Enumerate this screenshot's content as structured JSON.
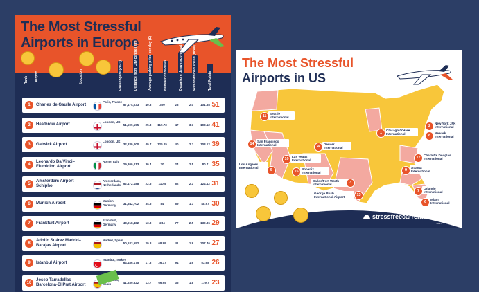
{
  "europe": {
    "title_line1": "The Most Stressful",
    "title_line2": "Airports in Europe",
    "columns": [
      "Rank",
      "Airport",
      "Location",
      "Passengers (2023)",
      "Distance from City centre (km)",
      "Average parking price per day (£)",
      "Number of reviews",
      "Departure delays score (out of 5)",
      "Wifi download speed (Mb/s)",
      "Total Points"
    ],
    "rows": [
      {
        "rank": "1",
        "airport": "Charles de Gaulle Airport",
        "location": "Paris, France",
        "flag": "france",
        "passengers": "57,474,033",
        "distance": "40.3",
        "parking": "300",
        "reviews": "28",
        "delay": "2.0",
        "wifi": "101.68",
        "total": "51"
      },
      {
        "rank": "2",
        "airport": "Heathrow Airport",
        "location": "London, UK",
        "flag": "uk",
        "passengers": "51,599,195",
        "distance": "25.3",
        "parking": "119.73",
        "reviews": "47",
        "delay": "3.7",
        "wifi": "103.12",
        "total": "41"
      },
      {
        "rank": "3",
        "airport": "Gatwick Airport",
        "location": "London, UK",
        "flag": "uk",
        "passengers": "32,839,000",
        "distance": "49.7",
        "parking": "125.25",
        "reviews": "40",
        "delay": "2.3",
        "wifi": "103.12",
        "total": "39"
      },
      {
        "rank": "4",
        "airport": "Leonardo Da Vinci–Fiumicino Airport",
        "location": "Rome, Italy",
        "flag": "italy",
        "passengers": "29,300,013",
        "distance": "30.4",
        "parking": "20",
        "reviews": "24",
        "delay": "2.5",
        "wifi": "80.7",
        "total": "35"
      },
      {
        "rank": "5",
        "airport": "Amsterdam Airport Schiphol",
        "location": "Amsterdam, Netherlands",
        "flag": "netherlands",
        "passengers": "52,472,188",
        "distance": "22.5",
        "parking": "110.5",
        "reviews": "62",
        "delay": "2.1",
        "wifi": "124.12",
        "total": "31"
      },
      {
        "rank": "6",
        "airport": "Munich Airport",
        "location": "Munich, Germany",
        "flag": "germany",
        "passengers": "31,642,702",
        "distance": "34.5",
        "parking": "84",
        "reviews": "69",
        "delay": "1.7",
        "wifi": "48.97",
        "total": "30"
      },
      {
        "rank": "7",
        "airport": "Frankfurt Airport",
        "location": "Frankfurt, Germany",
        "flag": "germany",
        "passengers": "48,918,482",
        "distance": "13.3",
        "parking": "234",
        "reviews": "77",
        "delay": "2.5",
        "wifi": "130.36",
        "total": "29"
      },
      {
        "rank": "8",
        "airport": "Adolfo Suárez Madrid–Barajas Airport",
        "location": "Madrid, Spain",
        "flag": "spain",
        "passengers": "50,633,652",
        "distance": "29.8",
        "parking": "68.99",
        "reviews": "41",
        "delay": "1.9",
        "wifi": "207.46",
        "total": "27"
      },
      {
        "rank": "9",
        "airport": "Istanbul Airport",
        "location": "Istanbul, Turkey",
        "flag": "turkey",
        "passengers": "64,486,175",
        "distance": "17.3",
        "parking": "26.37",
        "reviews": "94",
        "delay": "1.6",
        "wifi": "53.68",
        "total": "26"
      },
      {
        "rank": "10",
        "airport": "Josep Tarradellas Barcelona-El Prat Airport",
        "location": "Barcelona, Spain",
        "flag": "spain",
        "passengers": "41,639,622",
        "distance": "13.7",
        "parking": "66.95",
        "reviews": "36",
        "delay": "1.8",
        "wifi": "179.7",
        "total": "23"
      }
    ]
  },
  "us": {
    "title_line1": "The Most Stressful",
    "title_line2": "Airports in US",
    "brand": "stressfreecarrental",
    "brand_suffix": ".com",
    "airports": [
      {
        "rank": "1",
        "label": "Chicago O'Hare International"
      },
      {
        "rank": "2",
        "label": "New York JFK International"
      },
      {
        "rank": "3",
        "label": "Dallas/Fort Worth International"
      },
      {
        "rank": "4",
        "label": "Denver International"
      },
      {
        "rank": "5",
        "label": "Los Angeles International"
      },
      {
        "rank": "6",
        "label": "Miami International"
      },
      {
        "rank": "7",
        "label": "Orlando International"
      },
      {
        "rank": "8",
        "label": "Newark International"
      },
      {
        "rank": "9",
        "label": "Atlanta International"
      },
      {
        "rank": "10",
        "label": "Las Vegas International"
      },
      {
        "rank": "11",
        "label": "Seattle International"
      },
      {
        "rank": "12",
        "label": "Charlotte Douglas International"
      },
      {
        "rank": "13",
        "label": "George Bush International Airport"
      },
      {
        "rank": "14",
        "label": "San Francisco International"
      },
      {
        "rank": "15",
        "label": "Phoenix International"
      }
    ]
  },
  "colors": {
    "orange": "#e8542a",
    "navy": "#1e2d55",
    "yellow": "#f8c63a",
    "pink": "#f3a9a0",
    "background": "#2c3e66"
  }
}
